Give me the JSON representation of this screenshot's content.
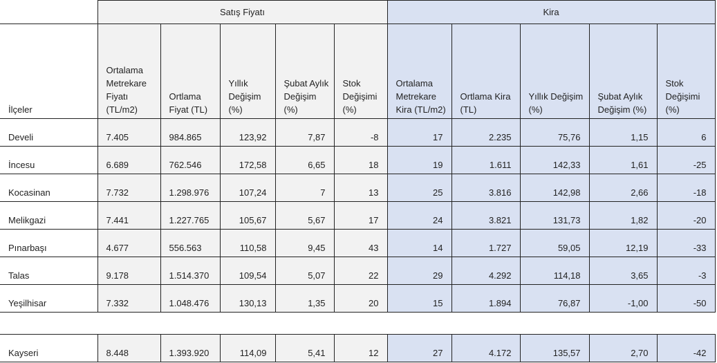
{
  "groups": {
    "sale": "Satış Fiyatı",
    "rent": "Kira"
  },
  "headers": [
    "İlçeler",
    "Ortalama Metrekare Fiyatı (TL/m2)",
    "Ortlama Fiyat (TL)",
    "Yıllık Değişim (%)",
    "Şubat Aylık Değişim (%)",
    "Stok Değişimi (%)",
    "Ortalama Metrekare Kira (TL/m2)",
    "Ortlama Kira (TL)",
    "Yıllık Değişim (%)",
    "Şubat Aylık Değişim (%)",
    "Stok Değişimi (%)"
  ],
  "rows": [
    [
      "Develi",
      "7.405",
      "984.865",
      "123,92",
      "7,87",
      "-8",
      "17",
      "2.235",
      "75,76",
      "1,15",
      "6"
    ],
    [
      "İncesu",
      "6.689",
      "762.546",
      "172,58",
      "6,65",
      "18",
      "19",
      "1.611",
      "142,33",
      "1,61",
      "-25"
    ],
    [
      "Kocasinan",
      "7.732",
      "1.298.976",
      "107,24",
      "7",
      "13",
      "25",
      "3.816",
      "142,98",
      "2,66",
      "-18"
    ],
    [
      "Melikgazi",
      "7.441",
      "1.227.765",
      "105,67",
      "5,67",
      "17",
      "24",
      "3.821",
      "131,73",
      "1,82",
      "-20"
    ],
    [
      "Pınarbaşı",
      "4.677",
      "556.563",
      "110,58",
      "9,45",
      "43",
      "14",
      "1.727",
      "59,05",
      "12,19",
      "-33"
    ],
    [
      "Talas",
      "9.178",
      "1.514.370",
      "109,54",
      "5,07",
      "22",
      "29",
      "4.292",
      "114,18",
      "3,65",
      "-3"
    ],
    [
      "Yeşilhisar",
      "7.332",
      "1.048.476",
      "130,13",
      "1,35",
      "20",
      "15",
      "1.894",
      "76,87",
      "-1,00",
      "-50"
    ]
  ],
  "total": [
    "Kayseri",
    "8.448",
    "1.393.920",
    "114,09",
    "5,41",
    "12",
    "27",
    "4.172",
    "135,57",
    "2,70",
    "-42"
  ],
  "colors": {
    "sale_bg": "#f2f2f2",
    "rent_bg": "#d9e1f2",
    "border": "#222222"
  }
}
